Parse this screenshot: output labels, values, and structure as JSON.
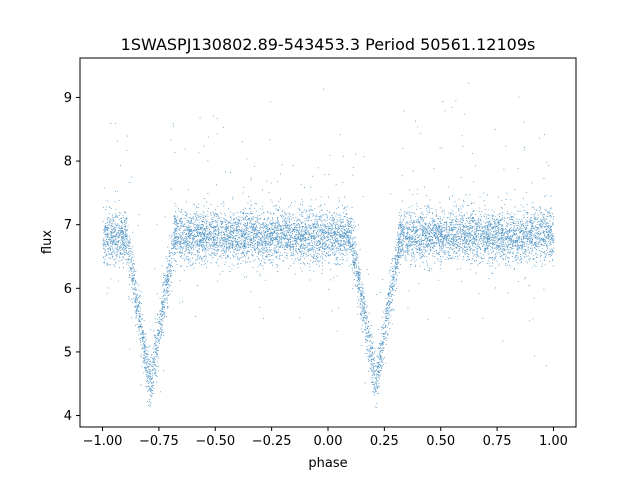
{
  "chart_data": {
    "type": "scatter",
    "title": "1SWASPJ130802.89-543453.3 Period 50561.12109s",
    "xlabel": "phase",
    "ylabel": "flux",
    "xlim": [
      -1.1,
      1.1
    ],
    "ylim": [
      3.82,
      9.62
    ],
    "xticks": [
      -1.0,
      -0.75,
      -0.5,
      -0.25,
      0.0,
      0.25,
      0.5,
      0.75,
      1.0
    ],
    "xtick_labels": [
      "−1.00",
      "−0.75",
      "−0.50",
      "−0.25",
      "0.00",
      "0.25",
      "0.50",
      "0.75",
      "1.00"
    ],
    "yticks": [
      4,
      5,
      6,
      7,
      8,
      9
    ],
    "ytick_labels": [
      "4",
      "5",
      "6",
      "7",
      "8",
      "9"
    ],
    "grid": false,
    "marker_color": "#1f77b4",
    "light_curve": {
      "x_range": [
        -1.0,
        1.0
      ],
      "baseline_flux": 6.82,
      "baseline_scatter": 0.2,
      "eclipses": [
        {
          "phase_center": -0.79,
          "min_flux": 4.5,
          "half_width": 0.11
        },
        {
          "phase_center": 0.21,
          "min_flux": 4.5,
          "half_width": 0.11
        }
      ]
    }
  }
}
